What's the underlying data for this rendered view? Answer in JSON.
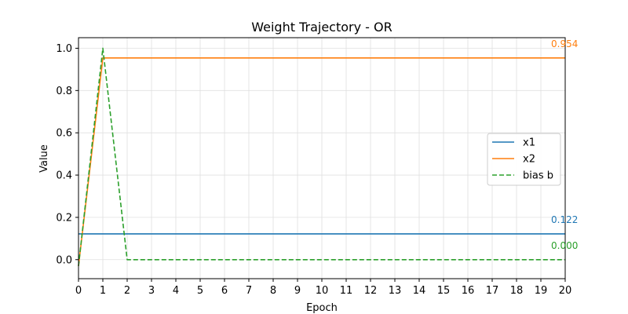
{
  "chart_data": {
    "type": "line",
    "title": "Weight Trajectory - OR",
    "xlabel": "Epoch",
    "ylabel": "Value",
    "xlim": [
      0,
      20
    ],
    "ylim": [
      -0.09,
      1.05
    ],
    "xticks": [
      0,
      1,
      2,
      3,
      4,
      5,
      6,
      7,
      8,
      9,
      10,
      11,
      12,
      13,
      14,
      15,
      16,
      17,
      18,
      19,
      20
    ],
    "yticks": [
      "0.0",
      "0.2",
      "0.4",
      "0.6",
      "0.8",
      "1.0"
    ],
    "grid": true,
    "legend_position": "center-right",
    "series": [
      {
        "name": "x1",
        "color": "#1f77b4",
        "style": "solid",
        "x": [
          0,
          1,
          2,
          3,
          4,
          5,
          6,
          7,
          8,
          9,
          10,
          11,
          12,
          13,
          14,
          15,
          16,
          17,
          18,
          19,
          20
        ],
        "y": [
          0.122,
          0.122,
          0.122,
          0.122,
          0.122,
          0.122,
          0.122,
          0.122,
          0.122,
          0.122,
          0.122,
          0.122,
          0.122,
          0.122,
          0.122,
          0.122,
          0.122,
          0.122,
          0.122,
          0.122,
          0.122
        ],
        "end_label": "0.122"
      },
      {
        "name": "x2",
        "color": "#ff7f0e",
        "style": "solid",
        "x": [
          0,
          1,
          2,
          3,
          4,
          5,
          6,
          7,
          8,
          9,
          10,
          11,
          12,
          13,
          14,
          15,
          16,
          17,
          18,
          19,
          20
        ],
        "y": [
          -0.03,
          0.954,
          0.954,
          0.954,
          0.954,
          0.954,
          0.954,
          0.954,
          0.954,
          0.954,
          0.954,
          0.954,
          0.954,
          0.954,
          0.954,
          0.954,
          0.954,
          0.954,
          0.954,
          0.954,
          0.954
        ],
        "end_label": "0.954"
      },
      {
        "name": "bias b",
        "color": "#2ca02c",
        "style": "dashed",
        "x": [
          0,
          1,
          2,
          3,
          4,
          5,
          6,
          7,
          8,
          9,
          10,
          11,
          12,
          13,
          14,
          15,
          16,
          17,
          18,
          19,
          20
        ],
        "y": [
          -0.03,
          1.0,
          0.0,
          0.0,
          0.0,
          0.0,
          0.0,
          0.0,
          0.0,
          0.0,
          0.0,
          0.0,
          0.0,
          0.0,
          0.0,
          0.0,
          0.0,
          0.0,
          0.0,
          0.0,
          0.0
        ],
        "end_label": "0.000"
      }
    ]
  }
}
